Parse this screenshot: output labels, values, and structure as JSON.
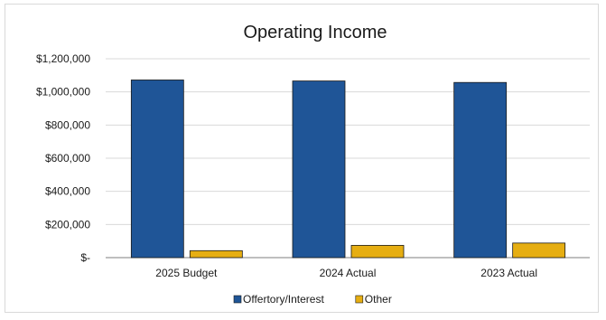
{
  "chart_data": {
    "type": "bar",
    "title": "Operating Income",
    "xlabel": "",
    "ylabel": "",
    "categories": [
      "2025 Budget",
      "2024 Actual",
      "2023 Actual"
    ],
    "series": [
      {
        "name": "Offertory/Interest",
        "values": [
          1072000,
          1066000,
          1057000
        ],
        "color": "#1f5597"
      },
      {
        "name": "Other",
        "values": [
          42000,
          74000,
          88000
        ],
        "color": "#e6ae12"
      }
    ],
    "ylim": [
      0,
      1200000
    ],
    "yticks": [
      0,
      200000,
      400000,
      600000,
      800000,
      1000000,
      1200000
    ],
    "ytick_labels": [
      "$-",
      "$200,000",
      "$400,000",
      "$600,000",
      "$800,000",
      "$1,000,000",
      "$1,200,000"
    ],
    "grid": true,
    "legend_position": "bottom"
  }
}
